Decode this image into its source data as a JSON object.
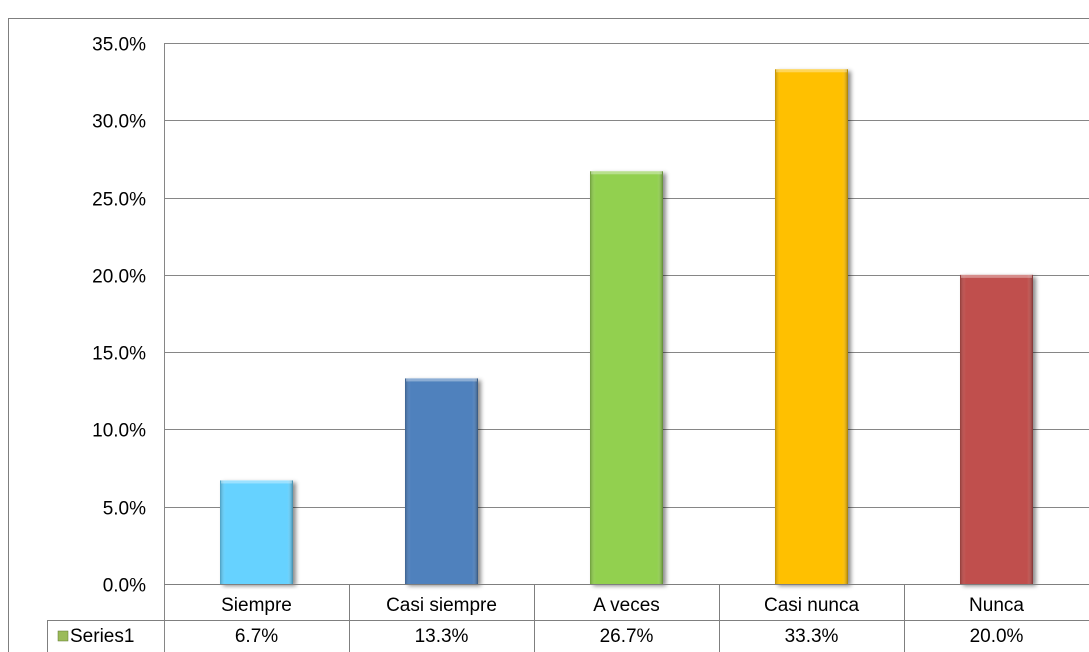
{
  "chart_data": {
    "type": "bar",
    "categories": [
      "Siempre",
      "Casi siempre",
      "A veces",
      "Casi nunca",
      "Nunca"
    ],
    "series": [
      {
        "name": "Series1",
        "values": [
          6.7,
          13.3,
          26.7,
          33.3,
          20.0
        ],
        "value_labels": [
          "6.7%",
          "13.3%",
          "26.7%",
          "33.3%",
          "20.0%"
        ]
      }
    ],
    "bar_colors": [
      "#66D2FF",
      "#4F81BD",
      "#92D050",
      "#FFC000",
      "#C0504D"
    ],
    "legend_key_color": "#9BBB59",
    "ylim": [
      0,
      35
    ],
    "y_ticks": [
      "0.0%",
      "5.0%",
      "10.0%",
      "15.0%",
      "20.0%",
      "25.0%",
      "30.0%",
      "35.0%"
    ],
    "grid": true,
    "legend": "data-table"
  }
}
